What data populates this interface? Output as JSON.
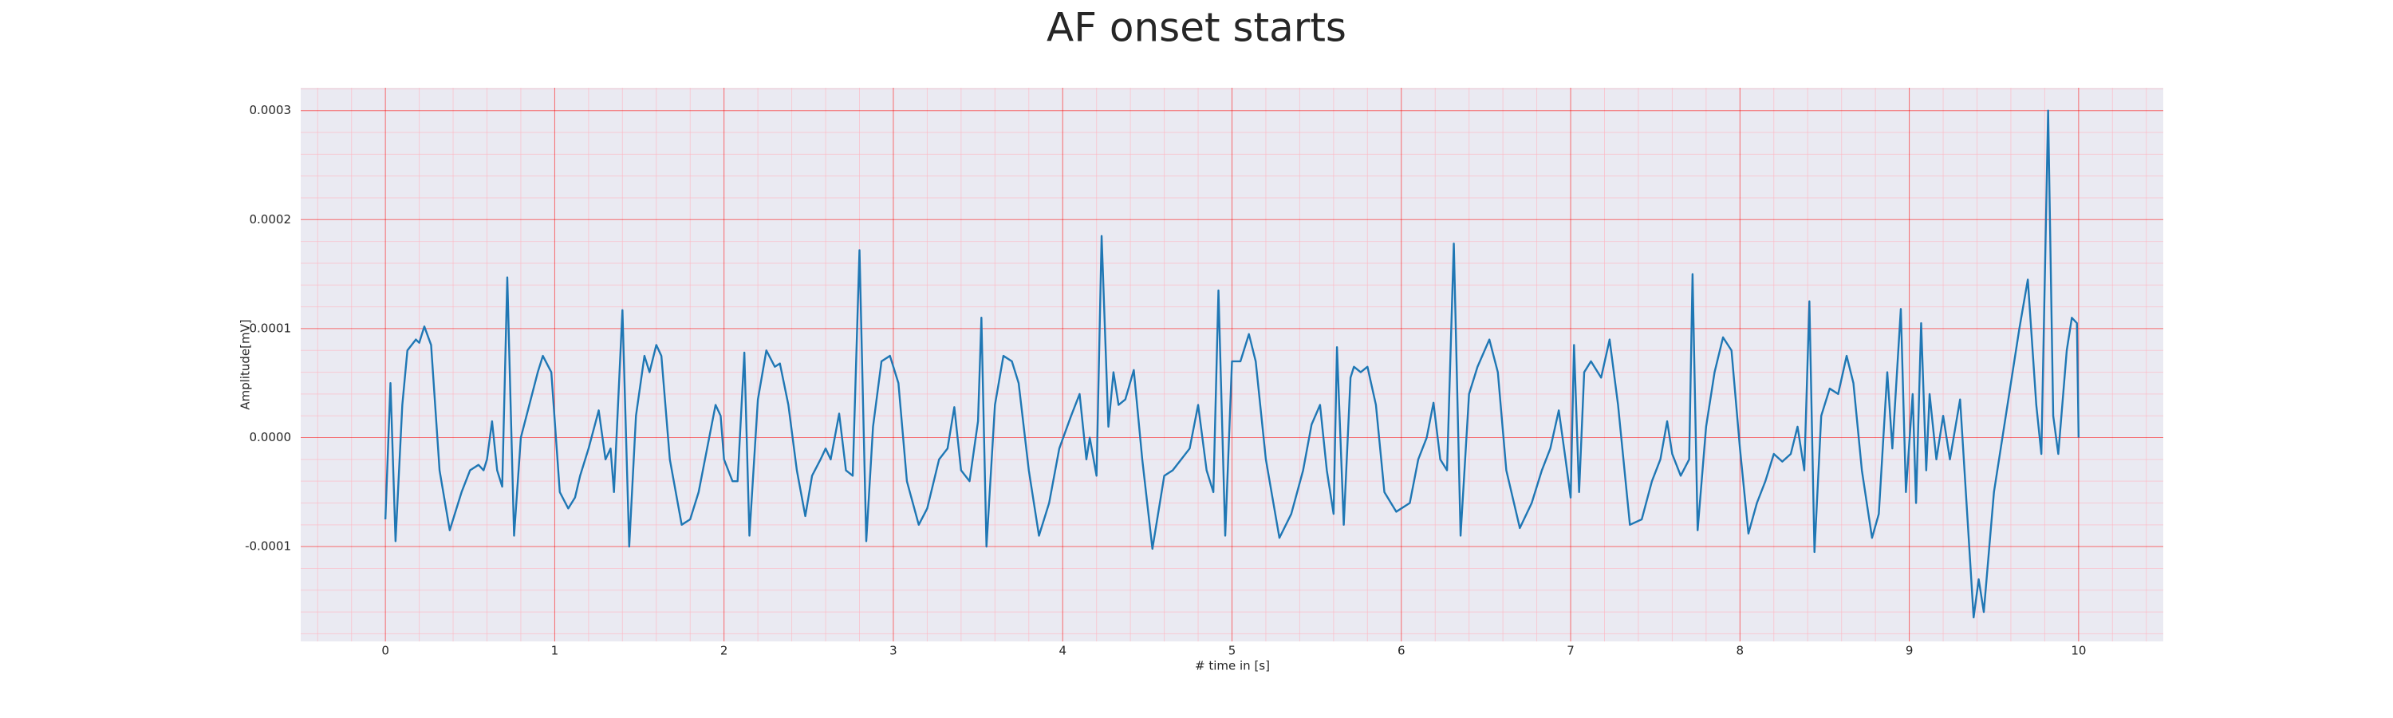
{
  "chart_data": {
    "type": "line",
    "title": "AF onset starts",
    "xlabel": "# time in [s]",
    "ylabel": "Amplitude[mV]",
    "color": "#1f77b4",
    "grid": true,
    "grid_color": "#ff0000",
    "minor_grid": true,
    "minor_grid_color": "#ffb6c1",
    "minor_divisions": 5,
    "background": "#eaeaf2",
    "xlim": [
      -0.5,
      10.5
    ],
    "ylim": [
      -0.000187,
      0.000321
    ],
    "xticks": [
      0,
      1,
      2,
      3,
      4,
      5,
      6,
      7,
      8,
      9,
      10
    ],
    "yticks": [
      -0.0001,
      {
        "value": 0,
        "label": "0.0000"
      },
      0.0001,
      0.0002,
      0.0003
    ],
    "x": [
      0,
      0.03,
      0.06,
      0.1,
      0.13,
      0.18,
      0.2,
      0.23,
      0.27,
      0.32,
      0.38,
      0.45,
      0.5,
      0.55,
      0.58,
      0.6,
      0.63,
      0.66,
      0.69,
      0.72,
      0.76,
      0.8,
      0.85,
      0.9,
      0.93,
      0.98,
      1.03,
      1.08,
      1.12,
      1.15,
      1.2,
      1.26,
      1.3,
      1.33,
      1.35,
      1.4,
      1.44,
      1.48,
      1.53,
      1.56,
      1.6,
      1.63,
      1.68,
      1.75,
      1.8,
      1.85,
      1.9,
      1.95,
      1.98,
      2.0,
      2.05,
      2.08,
      2.12,
      2.15,
      2.2,
      2.25,
      2.3,
      2.33,
      2.38,
      2.43,
      2.48,
      2.52,
      2.57,
      2.6,
      2.63,
      2.68,
      2.72,
      2.76,
      2.8,
      2.84,
      2.88,
      2.93,
      2.98,
      3.03,
      3.08,
      3.15,
      3.2,
      3.27,
      3.32,
      3.36,
      3.4,
      3.45,
      3.5,
      3.52,
      3.55,
      3.6,
      3.65,
      3.7,
      3.74,
      3.8,
      3.86,
      3.92,
      3.98,
      4.05,
      4.1,
      4.14,
      4.16,
      4.2,
      4.23,
      4.27,
      4.3,
      4.33,
      4.37,
      4.42,
      4.47,
      4.53,
      4.6,
      4.65,
      4.7,
      4.75,
      4.8,
      4.85,
      4.89,
      4.92,
      4.96,
      5.0,
      5.05,
      5.1,
      5.14,
      5.2,
      5.28,
      5.35,
      5.42,
      5.47,
      5.52,
      5.56,
      5.6,
      5.62,
      5.66,
      5.7,
      5.72,
      5.76,
      5.8,
      5.85,
      5.9,
      5.97,
      6.05,
      6.1,
      6.15,
      6.19,
      6.23,
      6.27,
      6.31,
      6.35,
      6.4,
      6.45,
      6.52,
      6.57,
      6.62,
      6.7,
      6.77,
      6.83,
      6.88,
      6.93,
      6.97,
      7.0,
      7.02,
      7.05,
      7.08,
      7.12,
      7.18,
      7.23,
      7.28,
      7.35,
      7.42,
      7.48,
      7.53,
      7.57,
      7.6,
      7.65,
      7.7,
      7.72,
      7.75,
      7.8,
      7.85,
      7.9,
      7.95,
      8.0,
      8.05,
      8.1,
      8.15,
      8.2,
      8.25,
      8.3,
      8.34,
      8.38,
      8.41,
      8.44,
      8.48,
      8.53,
      8.58,
      8.63,
      8.67,
      8.72,
      8.78,
      8.82,
      8.87,
      8.9,
      8.95,
      8.98,
      9.02,
      9.04,
      9.07,
      9.1,
      9.12,
      9.16,
      9.2,
      9.24,
      9.3,
      9.35,
      9.38,
      9.41,
      9.44,
      9.5,
      9.58,
      9.65,
      9.7,
      9.75,
      9.78,
      9.82,
      9.85,
      9.88,
      9.93,
      9.96,
      9.99,
      10.0
    ],
    "values": [
      -7.5e-05,
      5e-05,
      -9.5e-05,
      3e-05,
      8e-05,
      9e-05,
      8.7e-05,
      0.000102,
      8.5e-05,
      -3e-05,
      -8.5e-05,
      -5e-05,
      -3e-05,
      -2.5e-05,
      -3e-05,
      -2e-05,
      1.5e-05,
      -3e-05,
      -4.5e-05,
      0.000147,
      -9e-05,
      0,
      3e-05,
      6e-05,
      7.5e-05,
      6e-05,
      -5e-05,
      -6.5e-05,
      -5.5e-05,
      -3.5e-05,
      -1e-05,
      2.5e-05,
      -2e-05,
      -1e-05,
      -5e-05,
      0.000117,
      -0.0001,
      2e-05,
      7.5e-05,
      6e-05,
      8.5e-05,
      7.5e-05,
      -2e-05,
      -8e-05,
      -7.5e-05,
      -5e-05,
      -1e-05,
      3e-05,
      2e-05,
      -2e-05,
      -4e-05,
      -4e-05,
      7.8e-05,
      -9e-05,
      3.5e-05,
      8e-05,
      6.5e-05,
      6.8e-05,
      3e-05,
      -3e-05,
      -7.2e-05,
      -3.5e-05,
      -2e-05,
      -1e-05,
      -2e-05,
      2.2e-05,
      -3e-05,
      -3.5e-05,
      0.000172,
      -9.5e-05,
      1e-05,
      7e-05,
      7.5e-05,
      5e-05,
      -4e-05,
      -8e-05,
      -6.5e-05,
      -2e-05,
      -1e-05,
      2.8e-05,
      -3e-05,
      -4e-05,
      1.5e-05,
      0.00011,
      -0.0001,
      3e-05,
      7.5e-05,
      7e-05,
      5e-05,
      -3e-05,
      -9e-05,
      -6e-05,
      -1e-05,
      2e-05,
      4e-05,
      -2e-05,
      0,
      -3.5e-05,
      0.000185,
      1e-05,
      6e-05,
      3e-05,
      3.5e-05,
      6.2e-05,
      -2e-05,
      -0.000102,
      -3.5e-05,
      -3e-05,
      -2e-05,
      -1e-05,
      3e-05,
      -3e-05,
      -5e-05,
      0.000135,
      -9e-05,
      7e-05,
      7e-05,
      9.5e-05,
      7e-05,
      -2e-05,
      -9.2e-05,
      -7e-05,
      -3e-05,
      1.2e-05,
      3e-05,
      -3e-05,
      -7e-05,
      8.3e-05,
      -8e-05,
      5.5e-05,
      6.5e-05,
      6e-05,
      6.5e-05,
      3e-05,
      -5e-05,
      -6.8e-05,
      -6e-05,
      -2e-05,
      0,
      3.2e-05,
      -2e-05,
      -3e-05,
      0.000178,
      -9e-05,
      4e-05,
      6.5e-05,
      9e-05,
      6e-05,
      -3e-05,
      -8.3e-05,
      -6e-05,
      -3e-05,
      -1e-05,
      2.5e-05,
      -2e-05,
      -5.5e-05,
      8.5e-05,
      -5e-05,
      6e-05,
      7e-05,
      5.5e-05,
      9e-05,
      3e-05,
      -8e-05,
      -7.5e-05,
      -4e-05,
      -2e-05,
      1.5e-05,
      -1.5e-05,
      -3.5e-05,
      -2e-05,
      0.00015,
      -8.5e-05,
      1e-05,
      6e-05,
      9.2e-05,
      8e-05,
      -1e-05,
      -8.8e-05,
      -6e-05,
      -4e-05,
      -1.5e-05,
      -2.2e-05,
      -1.5e-05,
      1e-05,
      -3e-05,
      0.000125,
      -0.000105,
      2e-05,
      4.5e-05,
      4e-05,
      7.5e-05,
      5e-05,
      -3e-05,
      -9.2e-05,
      -7e-05,
      6e-05,
      -1e-05,
      0.000118,
      -5e-05,
      4e-05,
      -6e-05,
      0.000105,
      -3e-05,
      4e-05,
      -2e-05,
      2e-05,
      -2e-05,
      3.5e-05,
      -9e-05,
      -0.000165,
      -0.00013,
      -0.00016,
      -5e-05,
      3e-05,
      0.0001,
      0.000145,
      3e-05,
      -1.5e-05,
      0.0003,
      2e-05,
      -1.5e-05,
      8e-05,
      0.00011,
      0.000105,
      0
    ]
  }
}
